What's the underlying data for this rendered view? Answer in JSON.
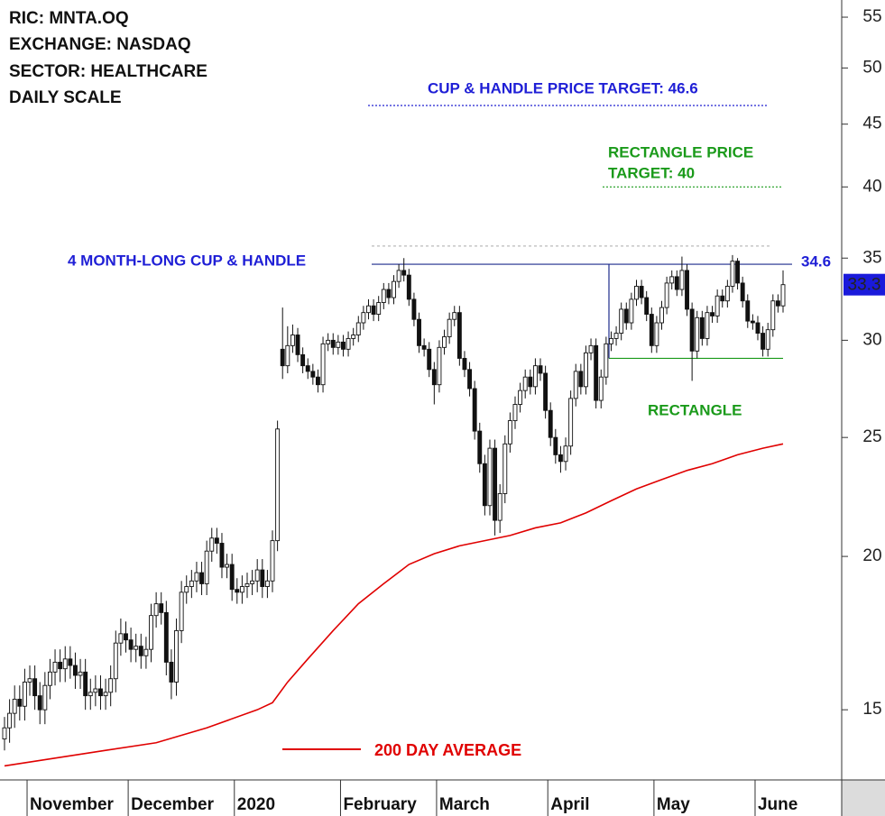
{
  "chart_data": {
    "type": "candlestick",
    "info_lines": [
      "RIC: MNTA.OQ",
      "EXCHANGE: NASDAQ",
      "SECTOR: HEALTHCARE",
      "DAILY SCALE"
    ],
    "pattern_label": "4 MONTH-LONG CUP & HANDLE",
    "cup_target_label": "CUP & HANDLE PRICE TARGET: 46.6",
    "rectangle_target_label": [
      "RECTANGLE PRICE",
      "TARGET: 40"
    ],
    "rectangle_label": "RECTANGLE",
    "cup_target": 46.6,
    "rectangle_target": 40,
    "resistance": 34.6,
    "prior_high": 35.8,
    "rectangle_support": 29.0,
    "last_price": 33.3,
    "y_scale": "log",
    "ylim": [
      13.15,
      56.8
    ],
    "yticks": [
      15,
      20,
      25,
      30,
      35,
      40,
      45,
      50,
      55
    ],
    "categories": [
      null,
      null,
      null,
      null,
      null,
      "November",
      null,
      null,
      null,
      null,
      null,
      null,
      null,
      null,
      null,
      null,
      null,
      null,
      null,
      null,
      null,
      null,
      null,
      null,
      null,
      "December",
      null,
      null,
      null,
      null,
      null,
      null,
      null,
      null,
      null,
      null,
      null,
      null,
      null,
      null,
      null,
      null,
      null,
      null,
      null,
      null,
      "2020",
      null,
      null,
      null,
      null,
      null,
      null,
      null,
      null,
      null,
      null,
      null,
      null,
      null,
      null,
      null,
      null,
      null,
      null,
      null,
      null,
      "February",
      null,
      null,
      null,
      null,
      null,
      null,
      null,
      null,
      null,
      null,
      null,
      null,
      null,
      null,
      null,
      null,
      null,
      null,
      "March",
      null,
      null,
      null,
      null,
      null,
      null,
      null,
      null,
      null,
      null,
      null,
      null,
      null,
      null,
      null,
      null,
      null,
      null,
      null,
      null,
      null,
      "April",
      null,
      null,
      null,
      null,
      null,
      null,
      null,
      null,
      null,
      null,
      null,
      null,
      null,
      null,
      null,
      null,
      null,
      null,
      null,
      null,
      "May",
      null,
      null,
      null,
      null,
      null,
      null,
      null,
      null,
      null,
      null,
      null,
      null,
      null,
      null,
      null,
      null,
      null,
      null,
      null,
      "June",
      null,
      null,
      null,
      null,
      null
    ],
    "open": [
      14.2,
      14.5,
      14.9,
      15.3,
      15.1,
      15.8,
      15.9,
      15.4,
      15.0,
      15.7,
      16.1,
      16.4,
      16.2,
      16.5,
      16.3,
      16.0,
      16.1,
      15.4,
      15.5,
      15.6,
      15.4,
      15.5,
      15.9,
      17.0,
      17.3,
      17.1,
      16.8,
      16.9,
      16.6,
      16.8,
      17.9,
      18.3,
      18.0,
      16.4,
      15.8,
      17.4,
      18.7,
      18.9,
      19.1,
      19.4,
      19.0,
      20.2,
      20.7,
      20.5,
      19.6,
      19.7,
      18.8,
      18.7,
      18.9,
      19.0,
      19.1,
      19.5,
      18.9,
      19.1,
      20.6,
      29.5,
      28.6,
      29.7,
      30.3,
      29.2,
      28.6,
      28.3,
      28.0,
      27.6,
      29.8,
      30.0,
      29.6,
      29.9,
      29.5,
      30.1,
      30.3,
      31.0,
      31.6,
      32.0,
      31.5,
      32.2,
      33.0,
      32.5,
      33.5,
      34.2,
      33.9,
      32.4,
      31.2,
      29.7,
      29.5,
      28.4,
      27.6,
      29.6,
      30.2,
      31.2,
      31.6,
      29.0,
      28.4,
      27.4,
      25.3,
      23.8,
      22.0,
      24.5,
      21.4,
      22.5,
      24.7,
      25.8,
      26.6,
      27.3,
      28.0,
      27.5,
      28.6,
      28.2,
      26.3,
      25.0,
      24.2,
      23.9,
      24.6,
      26.9,
      28.3,
      27.5,
      29.3,
      29.7,
      26.8,
      28.0,
      29.8,
      30.1,
      30.4,
      31.8,
      31.0,
      32.4,
      33.2,
      32.5,
      31.5,
      29.7,
      31.0,
      31.9,
      33.4,
      33.8,
      33.0,
      34.2,
      31.8,
      29.4,
      31.3,
      30.1,
      31.6,
      31.4,
      32.6,
      32.3,
      33.2,
      34.8,
      33.4,
      32.3,
      31.1,
      31.0,
      30.4,
      29.5,
      30.6,
      32.3,
      32.0
    ],
    "high": [
      14.8,
      15.3,
      15.7,
      15.7,
      16.2,
      16.3,
      16.3,
      15.8,
      16.1,
      16.5,
      16.8,
      16.8,
      16.9,
      16.9,
      16.7,
      16.5,
      16.5,
      15.9,
      16.0,
      16.0,
      15.9,
      16.3,
      17.4,
      17.8,
      17.7,
      17.5,
      17.3,
      17.3,
      17.2,
      18.3,
      18.7,
      18.7,
      18.4,
      16.8,
      17.8,
      19.1,
      19.3,
      19.5,
      19.8,
      19.8,
      20.6,
      21.1,
      21.1,
      20.9,
      20.1,
      20.1,
      19.2,
      19.3,
      19.4,
      19.5,
      19.9,
      19.9,
      19.5,
      21.0,
      25.8,
      31.9,
      30.8,
      30.9,
      30.7,
      29.6,
      29.0,
      28.7,
      28.4,
      30.2,
      30.4,
      30.4,
      30.3,
      30.3,
      30.5,
      30.7,
      31.4,
      32.0,
      32.4,
      32.4,
      32.6,
      33.4,
      33.4,
      33.9,
      34.6,
      35.0,
      34.3,
      32.8,
      31.6,
      30.1,
      29.9,
      28.8,
      30.0,
      30.6,
      31.6,
      32.0,
      32.0,
      29.4,
      28.8,
      27.8,
      25.7,
      24.2,
      24.9,
      24.9,
      22.9,
      25.1,
      26.2,
      27.0,
      27.7,
      28.4,
      28.4,
      29.0,
      29.0,
      28.6,
      26.7,
      25.4,
      24.6,
      25.0,
      27.3,
      28.7,
      28.7,
      29.7,
      30.1,
      30.1,
      28.4,
      30.2,
      30.5,
      30.8,
      32.2,
      32.2,
      32.8,
      33.6,
      33.6,
      32.9,
      31.9,
      31.4,
      32.3,
      33.8,
      34.2,
      34.2,
      35.1,
      34.6,
      32.2,
      31.7,
      31.7,
      32.0,
      32.0,
      33.0,
      33.0,
      33.6,
      35.2,
      35.0,
      33.8,
      32.7,
      31.5,
      31.4,
      30.8,
      31.0,
      32.7,
      32.7,
      34.2
    ],
    "low": [
      13.9,
      14.1,
      14.5,
      14.7,
      14.7,
      15.4,
      15.0,
      14.6,
      14.6,
      15.3,
      15.7,
      15.8,
      15.8,
      15.9,
      15.6,
      15.6,
      15.0,
      15.0,
      15.1,
      15.0,
      15.0,
      15.1,
      15.5,
      16.6,
      16.7,
      16.4,
      16.4,
      16.2,
      16.2,
      16.4,
      17.5,
      17.6,
      16.0,
      15.3,
      15.4,
      17.0,
      18.3,
      18.5,
      18.7,
      18.6,
      18.6,
      19.8,
      20.1,
      19.2,
      19.2,
      18.4,
      18.3,
      18.3,
      18.5,
      18.6,
      18.7,
      18.5,
      18.5,
      18.7,
      20.2,
      27.9,
      28.2,
      29.3,
      28.8,
      28.2,
      27.9,
      27.6,
      27.2,
      27.2,
      29.4,
      29.2,
      29.2,
      29.1,
      29.1,
      29.7,
      29.9,
      30.6,
      31.2,
      31.1,
      31.1,
      31.8,
      32.1,
      32.1,
      33.1,
      33.5,
      32.0,
      30.8,
      29.3,
      29.1,
      28.0,
      26.6,
      27.2,
      29.2,
      29.8,
      30.8,
      28.6,
      28.0,
      27.0,
      24.9,
      23.4,
      21.6,
      21.6,
      20.8,
      20.9,
      22.1,
      24.3,
      25.4,
      26.2,
      26.9,
      27.1,
      27.1,
      27.8,
      25.9,
      24.6,
      23.8,
      23.4,
      23.5,
      24.2,
      26.5,
      27.1,
      27.1,
      28.9,
      26.4,
      26.4,
      27.6,
      29.4,
      29.7,
      30.0,
      30.6,
      30.6,
      32.0,
      32.1,
      31.1,
      29.3,
      29.3,
      30.6,
      31.5,
      33.0,
      32.6,
      32.6,
      31.4,
      27.8,
      29.0,
      29.7,
      29.7,
      31.0,
      31.0,
      31.9,
      31.9,
      32.8,
      33.0,
      31.9,
      30.7,
      30.6,
      30.0,
      29.1,
      29.1,
      30.2,
      31.6,
      31.6
    ],
    "close": [
      14.5,
      14.9,
      15.3,
      15.1,
      15.8,
      15.9,
      15.4,
      15.0,
      15.7,
      16.1,
      16.4,
      16.2,
      16.5,
      16.3,
      16.0,
      16.1,
      15.4,
      15.5,
      15.6,
      15.4,
      15.5,
      15.9,
      17.0,
      17.3,
      17.1,
      16.8,
      16.9,
      16.6,
      16.8,
      17.9,
      18.3,
      18.0,
      16.4,
      15.8,
      17.4,
      18.7,
      18.9,
      19.1,
      19.4,
      19.0,
      20.2,
      20.7,
      20.5,
      19.6,
      19.7,
      18.8,
      18.7,
      18.9,
      19.0,
      19.1,
      19.5,
      18.9,
      19.1,
      20.6,
      25.4,
      28.6,
      29.7,
      30.3,
      29.2,
      28.6,
      28.3,
      28.0,
      27.6,
      29.8,
      30.0,
      29.6,
      29.9,
      29.5,
      30.1,
      30.3,
      31.0,
      31.6,
      32.0,
      31.5,
      32.2,
      33.0,
      32.5,
      33.5,
      34.2,
      33.9,
      32.4,
      31.2,
      29.7,
      29.5,
      28.4,
      27.6,
      29.6,
      30.2,
      31.2,
      31.6,
      29.0,
      28.4,
      27.4,
      25.3,
      23.8,
      22.0,
      24.5,
      21.4,
      22.5,
      24.7,
      25.8,
      26.6,
      27.3,
      28.0,
      27.5,
      28.6,
      28.2,
      26.3,
      25.0,
      24.2,
      23.9,
      24.6,
      26.9,
      28.3,
      27.5,
      29.3,
      29.7,
      26.8,
      28.0,
      29.8,
      30.1,
      30.4,
      31.8,
      31.0,
      32.4,
      33.2,
      32.5,
      31.5,
      29.7,
      31.0,
      31.9,
      33.4,
      33.8,
      33.0,
      34.2,
      31.8,
      29.4,
      31.3,
      30.1,
      31.6,
      31.4,
      32.6,
      32.3,
      33.2,
      34.8,
      33.4,
      32.3,
      31.1,
      31.0,
      30.4,
      29.5,
      30.6,
      32.3,
      32.0,
      33.3
    ],
    "series": [
      {
        "name": "200 DAY AVERAGE",
        "color": "#e00000",
        "x": [
          0,
          10,
          20,
          30,
          40,
          50,
          53,
          56,
          60,
          65,
          70,
          75,
          80,
          85,
          90,
          95,
          100,
          105,
          110,
          115,
          120,
          125,
          130,
          135,
          140,
          145,
          150,
          154
        ],
        "values": [
          13.5,
          13.7,
          13.9,
          14.1,
          14.5,
          15.0,
          15.2,
          15.8,
          16.5,
          17.4,
          18.3,
          19.0,
          19.7,
          20.1,
          20.4,
          20.6,
          20.8,
          21.1,
          21.3,
          21.7,
          22.2,
          22.7,
          23.1,
          23.5,
          23.8,
          24.2,
          24.5,
          24.7
        ]
      }
    ]
  }
}
